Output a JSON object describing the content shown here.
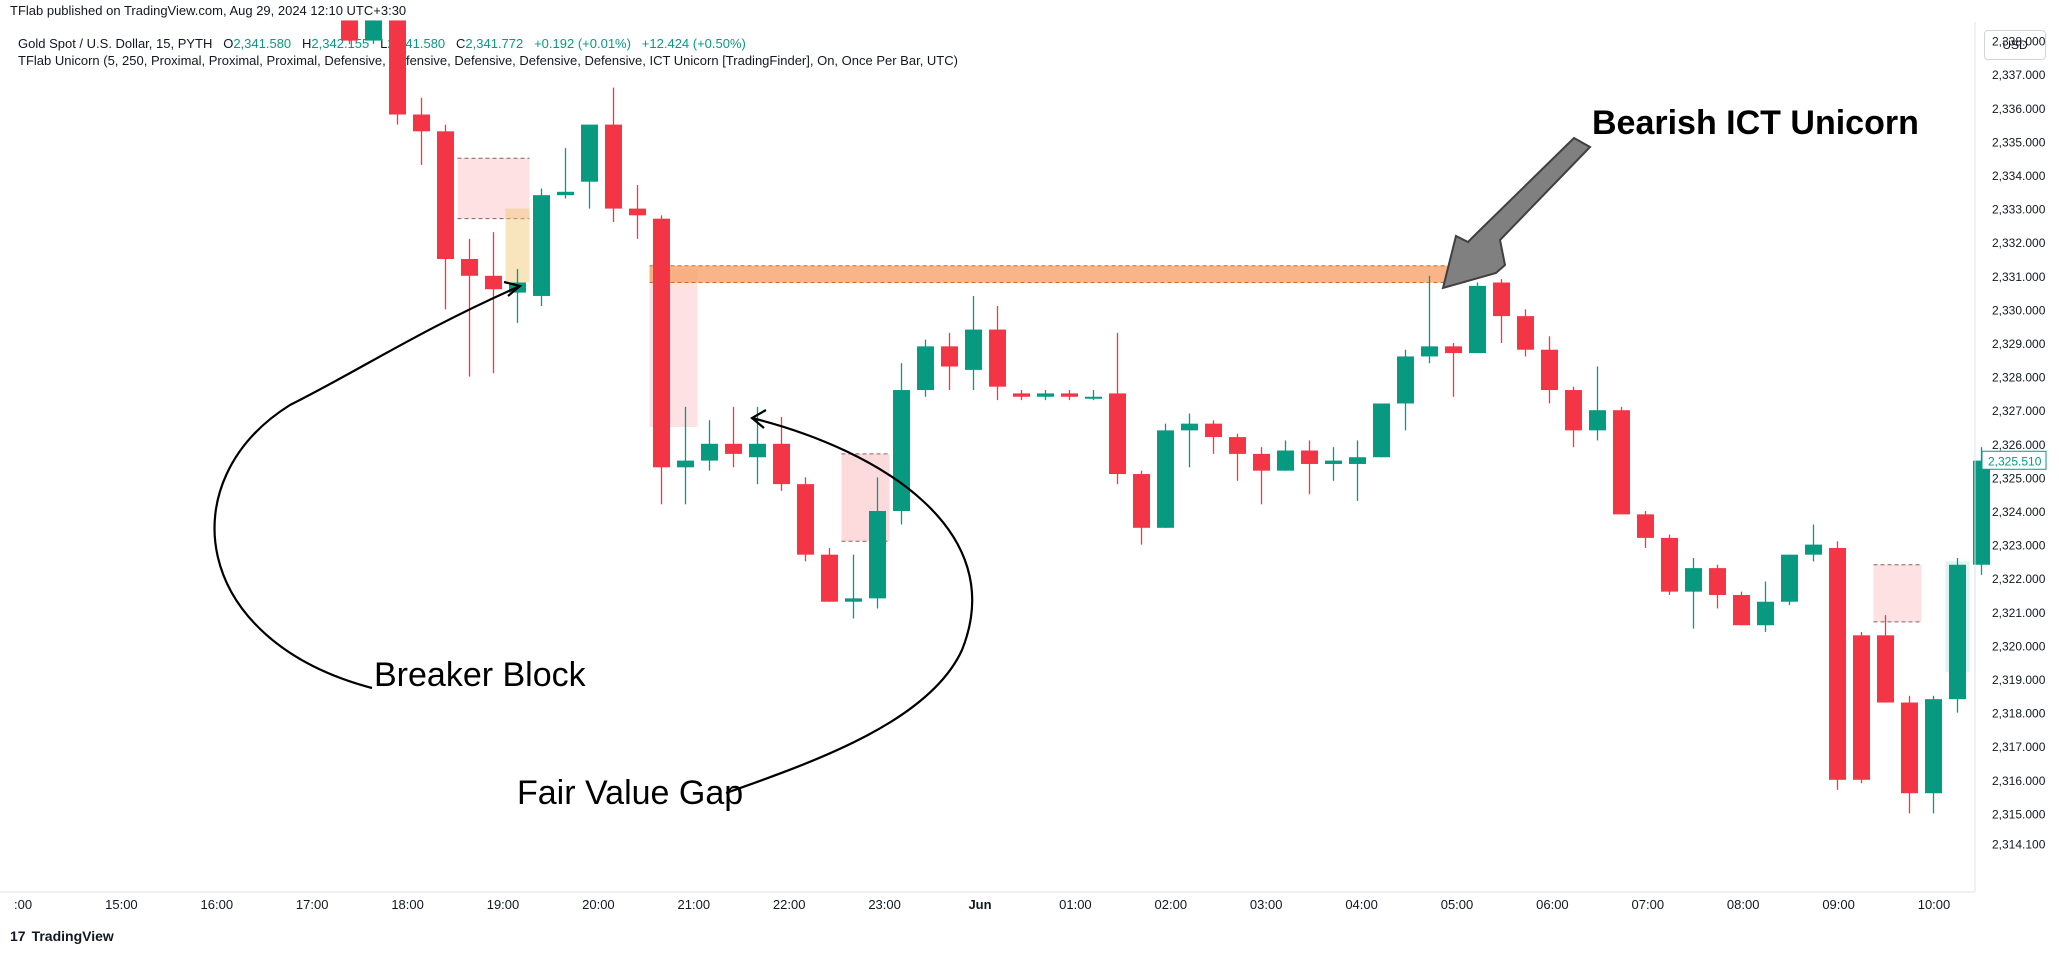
{
  "header": {
    "published": "TFlab published on TradingView.com, Aug 29, 2024 12:10 UTC+3:30",
    "symbol": "Gold Spot / U.S. Dollar, 15, PYTH",
    "o_label": "O",
    "o_value": "2,341.580",
    "h_label": "H",
    "h_value": "2,342.155",
    "l_label": "L",
    "l_value": "2,341.580",
    "c_label": "C",
    "c_value": "2,341.772",
    "change": "+0.192 (+0.01%)",
    "change2": "+12.424 (+0.50%)",
    "indicator": "TFlab Unicorn (5, 250, Proximal, Proximal, Proximal, Defensive, Defensive, Defensive, Defensive, Defensive, ICT Unicorn [TradingFinder], On, Once Per Bar, UTC)",
    "currency_button": "USD"
  },
  "footer": {
    "logo": "17",
    "brand": "TradingView"
  },
  "annotations": {
    "unicorn": "Bearish ICT Unicorn",
    "breaker": "Breaker Block",
    "fvg": "Fair Value Gap"
  },
  "colors": {
    "bull": "#089981",
    "bear": "#f23645",
    "unicorn_zone": "#f7a26b",
    "fvg_zone": "#f23645",
    "breaker_zone": "#f0c36c",
    "green_zone": "#089981"
  },
  "chart_data": {
    "type": "candlestick",
    "ylim": [
      2313.7,
      2338.6
    ],
    "yticks": [
      "2,314.100",
      "2,315.000",
      "2,316.000",
      "2,317.000",
      "2,318.000",
      "2,319.000",
      "2,320.000",
      "2,321.000",
      "2,322.000",
      "2,323.000",
      "2,324.000",
      "2,325.000",
      "2,326.000",
      "2,327.000",
      "2,328.000",
      "2,329.000",
      "2,330.000",
      "2,331.000",
      "2,332.000",
      "2,333.000",
      "2,334.000",
      "2,335.000",
      "2,336.000",
      "2,337.000",
      "2,338.000"
    ],
    "xticks": [
      ":00",
      "15:00",
      "16:00",
      "17:00",
      "18:00",
      "19:00",
      "20:00",
      "21:00",
      "22:00",
      "23:00",
      "Jun",
      "01:00",
      "02:00",
      "03:00",
      "04:00",
      "05:00",
      "06:00",
      "07:00",
      "08:00",
      "09:00",
      "10:00"
    ],
    "last_price": "2,325.510",
    "candles": [
      {
        "o": 2338.6,
        "h": 2338.6,
        "l": 2337.9,
        "c": 2338.0
      },
      {
        "o": 2338.0,
        "h": 2338.6,
        "l": 2337.9,
        "c": 2338.6
      },
      {
        "o": 2338.6,
        "h": 2338.6,
        "l": 2335.5,
        "c": 2335.8
      },
      {
        "o": 2335.8,
        "h": 2336.3,
        "l": 2334.3,
        "c": 2335.3
      },
      {
        "o": 2335.3,
        "h": 2335.5,
        "l": 2330.0,
        "c": 2331.5
      },
      {
        "o": 2331.5,
        "h": 2332.1,
        "l": 2328.0,
        "c": 2331.0
      },
      {
        "o": 2331.0,
        "h": 2332.3,
        "l": 2328.1,
        "c": 2330.6
      },
      {
        "o": 2330.5,
        "h": 2331.2,
        "l": 2329.6,
        "c": 2330.8
      },
      {
        "o": 2330.4,
        "h": 2333.6,
        "l": 2330.1,
        "c": 2333.4
      },
      {
        "o": 2333.4,
        "h": 2334.8,
        "l": 2333.3,
        "c": 2333.5
      },
      {
        "o": 2333.8,
        "h": 2335.3,
        "l": 2333.0,
        "c": 2335.5
      },
      {
        "o": 2335.5,
        "h": 2336.6,
        "l": 2332.6,
        "c": 2333.0
      },
      {
        "o": 2333.0,
        "h": 2333.7,
        "l": 2332.1,
        "c": 2332.8
      },
      {
        "o": 2332.7,
        "h": 2332.8,
        "l": 2324.2,
        "c": 2325.3
      },
      {
        "o": 2325.3,
        "h": 2327.1,
        "l": 2324.2,
        "c": 2325.5
      },
      {
        "o": 2325.5,
        "h": 2326.7,
        "l": 2325.2,
        "c": 2326.0
      },
      {
        "o": 2326.0,
        "h": 2327.1,
        "l": 2325.3,
        "c": 2325.7
      },
      {
        "o": 2325.6,
        "h": 2327.1,
        "l": 2324.8,
        "c": 2326.0
      },
      {
        "o": 2326.0,
        "h": 2326.8,
        "l": 2324.6,
        "c": 2324.8
      },
      {
        "o": 2324.8,
        "h": 2325.0,
        "l": 2322.5,
        "c": 2322.7
      },
      {
        "o": 2322.7,
        "h": 2322.9,
        "l": 2321.3,
        "c": 2321.3
      },
      {
        "o": 2321.3,
        "h": 2322.7,
        "l": 2320.8,
        "c": 2321.4
      },
      {
        "o": 2321.4,
        "h": 2325.0,
        "l": 2321.1,
        "c": 2324.0
      },
      {
        "o": 2324.0,
        "h": 2328.4,
        "l": 2323.6,
        "c": 2327.6
      },
      {
        "o": 2327.6,
        "h": 2329.1,
        "l": 2327.4,
        "c": 2328.9
      },
      {
        "o": 2328.9,
        "h": 2329.3,
        "l": 2327.6,
        "c": 2328.3
      },
      {
        "o": 2328.2,
        "h": 2330.4,
        "l": 2327.6,
        "c": 2329.4
      },
      {
        "o": 2329.4,
        "h": 2330.1,
        "l": 2327.3,
        "c": 2327.7
      },
      {
        "o": 2327.5,
        "h": 2327.6,
        "l": 2327.3,
        "c": 2327.4
      },
      {
        "o": 2327.4,
        "h": 2327.6,
        "l": 2327.3,
        "c": 2327.5
      },
      {
        "o": 2327.5,
        "h": 2327.6,
        "l": 2327.3,
        "c": 2327.4
      },
      {
        "o": 2327.4,
        "h": 2327.6,
        "l": 2327.3,
        "c": 2327.4
      },
      {
        "o": 2327.5,
        "h": 2329.3,
        "l": 2324.8,
        "c": 2325.1
      },
      {
        "o": 2325.1,
        "h": 2325.2,
        "l": 2323.0,
        "c": 2323.5
      },
      {
        "o": 2323.5,
        "h": 2326.6,
        "l": 2323.5,
        "c": 2326.4
      },
      {
        "o": 2326.4,
        "h": 2326.9,
        "l": 2325.3,
        "c": 2326.6
      },
      {
        "o": 2326.6,
        "h": 2326.7,
        "l": 2325.7,
        "c": 2326.2
      },
      {
        "o": 2326.2,
        "h": 2326.3,
        "l": 2324.9,
        "c": 2325.7
      },
      {
        "o": 2325.7,
        "h": 2325.9,
        "l": 2324.2,
        "c": 2325.2
      },
      {
        "o": 2325.2,
        "h": 2326.1,
        "l": 2325.2,
        "c": 2325.8
      },
      {
        "o": 2325.8,
        "h": 2326.1,
        "l": 2324.5,
        "c": 2325.4
      },
      {
        "o": 2325.4,
        "h": 2325.9,
        "l": 2324.9,
        "c": 2325.5
      },
      {
        "o": 2325.4,
        "h": 2326.1,
        "l": 2324.3,
        "c": 2325.6
      },
      {
        "o": 2325.6,
        "h": 2327.1,
        "l": 2325.6,
        "c": 2327.2
      },
      {
        "o": 2327.2,
        "h": 2328.8,
        "l": 2326.4,
        "c": 2328.6
      },
      {
        "o": 2328.6,
        "h": 2331.0,
        "l": 2328.4,
        "c": 2328.9
      },
      {
        "o": 2328.9,
        "h": 2329.0,
        "l": 2327.4,
        "c": 2328.7
      },
      {
        "o": 2328.7,
        "h": 2330.8,
        "l": 2328.7,
        "c": 2330.7
      },
      {
        "o": 2330.8,
        "h": 2330.9,
        "l": 2329.0,
        "c": 2329.8
      },
      {
        "o": 2329.8,
        "h": 2330.0,
        "l": 2328.6,
        "c": 2328.8
      },
      {
        "o": 2328.8,
        "h": 2329.2,
        "l": 2327.2,
        "c": 2327.6
      },
      {
        "o": 2327.6,
        "h": 2327.7,
        "l": 2325.9,
        "c": 2326.4
      },
      {
        "o": 2326.4,
        "h": 2328.3,
        "l": 2326.1,
        "c": 2327.0
      },
      {
        "o": 2327.0,
        "h": 2327.1,
        "l": 2323.9,
        "c": 2323.9
      },
      {
        "o": 2323.9,
        "h": 2324.0,
        "l": 2322.9,
        "c": 2323.2
      },
      {
        "o": 2323.2,
        "h": 2323.3,
        "l": 2321.5,
        "c": 2321.6
      },
      {
        "o": 2321.6,
        "h": 2322.6,
        "l": 2320.5,
        "c": 2322.3
      },
      {
        "o": 2322.3,
        "h": 2322.4,
        "l": 2321.1,
        "c": 2321.5
      },
      {
        "o": 2321.5,
        "h": 2321.6,
        "l": 2320.6,
        "c": 2320.6
      },
      {
        "o": 2320.6,
        "h": 2321.9,
        "l": 2320.4,
        "c": 2321.3
      },
      {
        "o": 2321.3,
        "h": 2322.7,
        "l": 2321.2,
        "c": 2322.7
      },
      {
        "o": 2322.7,
        "h": 2323.6,
        "l": 2322.5,
        "c": 2323.0
      },
      {
        "o": 2322.9,
        "h": 2323.1,
        "l": 2315.7,
        "c": 2316.0
      },
      {
        "o": 2320.3,
        "h": 2320.4,
        "l": 2315.9,
        "c": 2316.0
      },
      {
        "o": 2320.3,
        "h": 2320.9,
        "l": 2318.4,
        "c": 2318.3
      },
      {
        "o": 2318.3,
        "h": 2318.5,
        "l": 2315.0,
        "c": 2315.6
      },
      {
        "o": 2315.6,
        "h": 2318.5,
        "l": 2315.0,
        "c": 2318.4
      },
      {
        "o": 2318.4,
        "h": 2322.6,
        "l": 2318.0,
        "c": 2322.4
      },
      {
        "o": 2322.4,
        "h": 2325.9,
        "l": 2322.1,
        "c": 2325.5
      }
    ]
  }
}
